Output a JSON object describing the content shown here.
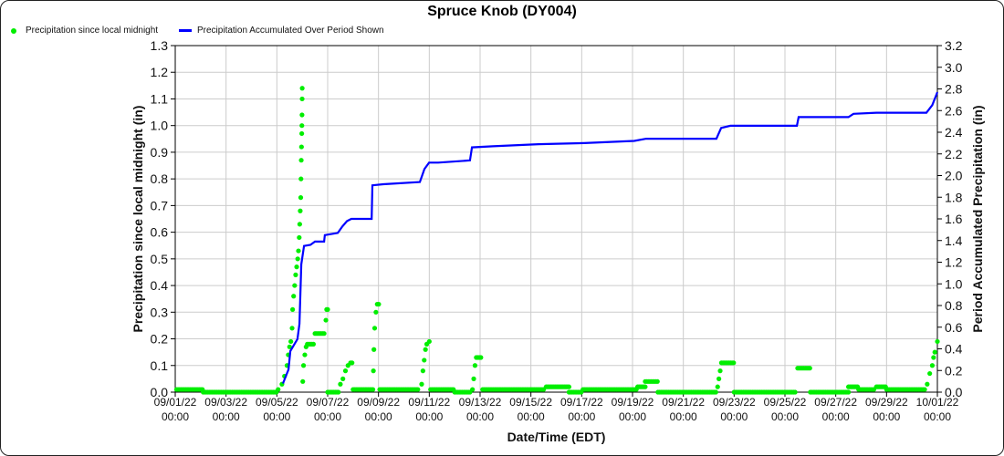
{
  "chart_data": {
    "type": "scatter+line",
    "title": "Spruce Knob (DY004)",
    "xlabel": "Date/Time (EDT)",
    "ylabel_left": "Precipitation since local midnight (in)",
    "ylabel_right": "Period Accumulated Precipitation (in)",
    "x_unit": "days since 09/01/22 00:00",
    "xlim": [
      0,
      30
    ],
    "ylim_left": [
      0,
      1.3
    ],
    "ylim_right": [
      0,
      3.2
    ],
    "grid": true,
    "legend_position": "top-left",
    "x_ticks": [
      [
        "09/01/22",
        "00:00"
      ],
      [
        "09/03/22",
        "00:00"
      ],
      [
        "09/05/22",
        "00:00"
      ],
      [
        "09/07/22",
        "00:00"
      ],
      [
        "09/09/22",
        "00:00"
      ],
      [
        "09/11/22",
        "00:00"
      ],
      [
        "09/13/22",
        "00:00"
      ],
      [
        "09/15/22",
        "00:00"
      ],
      [
        "09/17/22",
        "00:00"
      ],
      [
        "09/19/22",
        "00:00"
      ],
      [
        "09/21/22",
        "00:00"
      ],
      [
        "09/23/22",
        "00:00"
      ],
      [
        "09/25/22",
        "00:00"
      ],
      [
        "09/27/22",
        "00:00"
      ],
      [
        "09/29/22",
        "00:00"
      ],
      [
        "10/01/22",
        "00:00"
      ]
    ],
    "y_ticks_left": [
      "0.0",
      "0.1",
      "0.2",
      "0.3",
      "0.4",
      "0.5",
      "0.6",
      "0.7",
      "0.8",
      "0.9",
      "1.0",
      "1.1",
      "1.2",
      "1.3"
    ],
    "y_ticks_right": [
      "0.0",
      "0.2",
      "0.4",
      "0.6",
      "0.8",
      "1.0",
      "1.2",
      "1.4",
      "1.6",
      "1.8",
      "2.0",
      "2.2",
      "2.4",
      "2.6",
      "2.8",
      "3.0",
      "3.2"
    ],
    "series": [
      {
        "name": "Precipitation since local midnight",
        "axis": "left",
        "color": "#00ee00",
        "flat_segments": [
          [
            0.05,
            1.1,
            0.01
          ],
          [
            1.1,
            4.0,
            0.0
          ],
          [
            5.2,
            5.45,
            0.18
          ],
          [
            5.5,
            5.9,
            0.22
          ],
          [
            6.0,
            6.45,
            0.0
          ],
          [
            6.9,
            7.0,
            0.11
          ],
          [
            7.0,
            7.78,
            0.01
          ],
          [
            7.95,
            8.05,
            0.33
          ],
          [
            8.05,
            9.6,
            0.01
          ],
          [
            10.05,
            11.0,
            0.01
          ],
          [
            11.0,
            11.65,
            0.0
          ],
          [
            11.85,
            12.05,
            0.13
          ],
          [
            12.1,
            14.55,
            0.01
          ],
          [
            14.6,
            15.5,
            0.02
          ],
          [
            15.5,
            16.0,
            0.0
          ],
          [
            16.05,
            18.2,
            0.01
          ],
          [
            18.2,
            18.5,
            0.02
          ],
          [
            18.5,
            19.0,
            0.04
          ],
          [
            19.0,
            21.3,
            0.0
          ],
          [
            21.5,
            22.0,
            0.11
          ],
          [
            22.0,
            24.45,
            0.0
          ],
          [
            24.5,
            25.0,
            0.09
          ],
          [
            25.0,
            26.5,
            0.0
          ],
          [
            26.5,
            26.9,
            0.02
          ],
          [
            26.9,
            27.55,
            0.01
          ],
          [
            27.6,
            28.0,
            0.02
          ],
          [
            28.0,
            29.55,
            0.01
          ]
        ],
        "points": [
          [
            4.05,
            0.01
          ],
          [
            4.2,
            0.03
          ],
          [
            4.3,
            0.06
          ],
          [
            4.4,
            0.1
          ],
          [
            4.45,
            0.14
          ],
          [
            4.5,
            0.17
          ],
          [
            4.55,
            0.19
          ],
          [
            4.6,
            0.24
          ],
          [
            4.62,
            0.31
          ],
          [
            4.66,
            0.36
          ],
          [
            4.7,
            0.4
          ],
          [
            4.74,
            0.44
          ],
          [
            4.78,
            0.47
          ],
          [
            4.82,
            0.5
          ],
          [
            4.85,
            0.53
          ],
          [
            4.88,
            0.58
          ],
          [
            4.9,
            0.63
          ],
          [
            4.92,
            0.68
          ],
          [
            4.94,
            0.73
          ],
          [
            4.95,
            0.8
          ],
          [
            4.96,
            0.87
          ],
          [
            4.97,
            0.92
          ],
          [
            4.98,
            0.97
          ],
          [
            4.985,
            1.0
          ],
          [
            4.99,
            1.04
          ],
          [
            4.995,
            1.1
          ],
          [
            4.998,
            1.14
          ],
          [
            5.02,
            0.04
          ],
          [
            5.05,
            0.1
          ],
          [
            5.1,
            0.14
          ],
          [
            5.15,
            0.17
          ],
          [
            5.93,
            0.27
          ],
          [
            5.96,
            0.31
          ],
          [
            6.0,
            0.31
          ],
          [
            6.5,
            0.03
          ],
          [
            6.6,
            0.05
          ],
          [
            6.7,
            0.08
          ],
          [
            6.8,
            0.1
          ],
          [
            7.8,
            0.08
          ],
          [
            7.82,
            0.16
          ],
          [
            7.85,
            0.24
          ],
          [
            7.9,
            0.3
          ],
          [
            9.7,
            0.03
          ],
          [
            9.75,
            0.08
          ],
          [
            9.8,
            0.12
          ],
          [
            9.85,
            0.16
          ],
          [
            9.9,
            0.18
          ],
          [
            10.0,
            0.19
          ],
          [
            11.7,
            0.01
          ],
          [
            11.75,
            0.05
          ],
          [
            11.8,
            0.1
          ],
          [
            21.35,
            0.02
          ],
          [
            21.4,
            0.05
          ],
          [
            21.45,
            0.08
          ],
          [
            29.6,
            0.03
          ],
          [
            29.7,
            0.07
          ],
          [
            29.8,
            0.1
          ],
          [
            29.85,
            0.13
          ],
          [
            29.9,
            0.15
          ],
          [
            30.0,
            0.19
          ]
        ]
      },
      {
        "name": "Precipitation Accumulated Over Period Shown",
        "axis": "right",
        "color": "#0000ff",
        "points": [
          [
            4.24,
            0.08
          ],
          [
            4.46,
            0.21
          ],
          [
            4.53,
            0.38
          ],
          [
            4.81,
            0.49
          ],
          [
            4.89,
            0.63
          ],
          [
            4.96,
            1.18
          ],
          [
            5.07,
            1.35
          ],
          [
            5.32,
            1.36
          ],
          [
            5.5,
            1.39
          ],
          [
            5.86,
            1.39
          ],
          [
            5.89,
            1.45
          ],
          [
            6.4,
            1.47
          ],
          [
            6.58,
            1.53
          ],
          [
            6.76,
            1.58
          ],
          [
            6.93,
            1.6
          ],
          [
            7.73,
            1.6
          ],
          [
            7.76,
            1.91
          ],
          [
            8.19,
            1.92
          ],
          [
            9.63,
            1.94
          ],
          [
            9.81,
            2.06
          ],
          [
            9.99,
            2.12
          ],
          [
            10.35,
            2.12
          ],
          [
            11.6,
            2.14
          ],
          [
            11.68,
            2.26
          ],
          [
            12.5,
            2.27
          ],
          [
            14.3,
            2.29
          ],
          [
            16.1,
            2.3
          ],
          [
            18.07,
            2.32
          ],
          [
            18.54,
            2.34
          ],
          [
            21.3,
            2.34
          ],
          [
            21.49,
            2.44
          ],
          [
            21.85,
            2.46
          ],
          [
            24.47,
            2.46
          ],
          [
            24.54,
            2.54
          ],
          [
            26.5,
            2.54
          ],
          [
            26.7,
            2.57
          ],
          [
            27.6,
            2.58
          ],
          [
            29.57,
            2.58
          ],
          [
            29.8,
            2.65
          ],
          [
            30.0,
            2.77
          ]
        ]
      }
    ]
  }
}
